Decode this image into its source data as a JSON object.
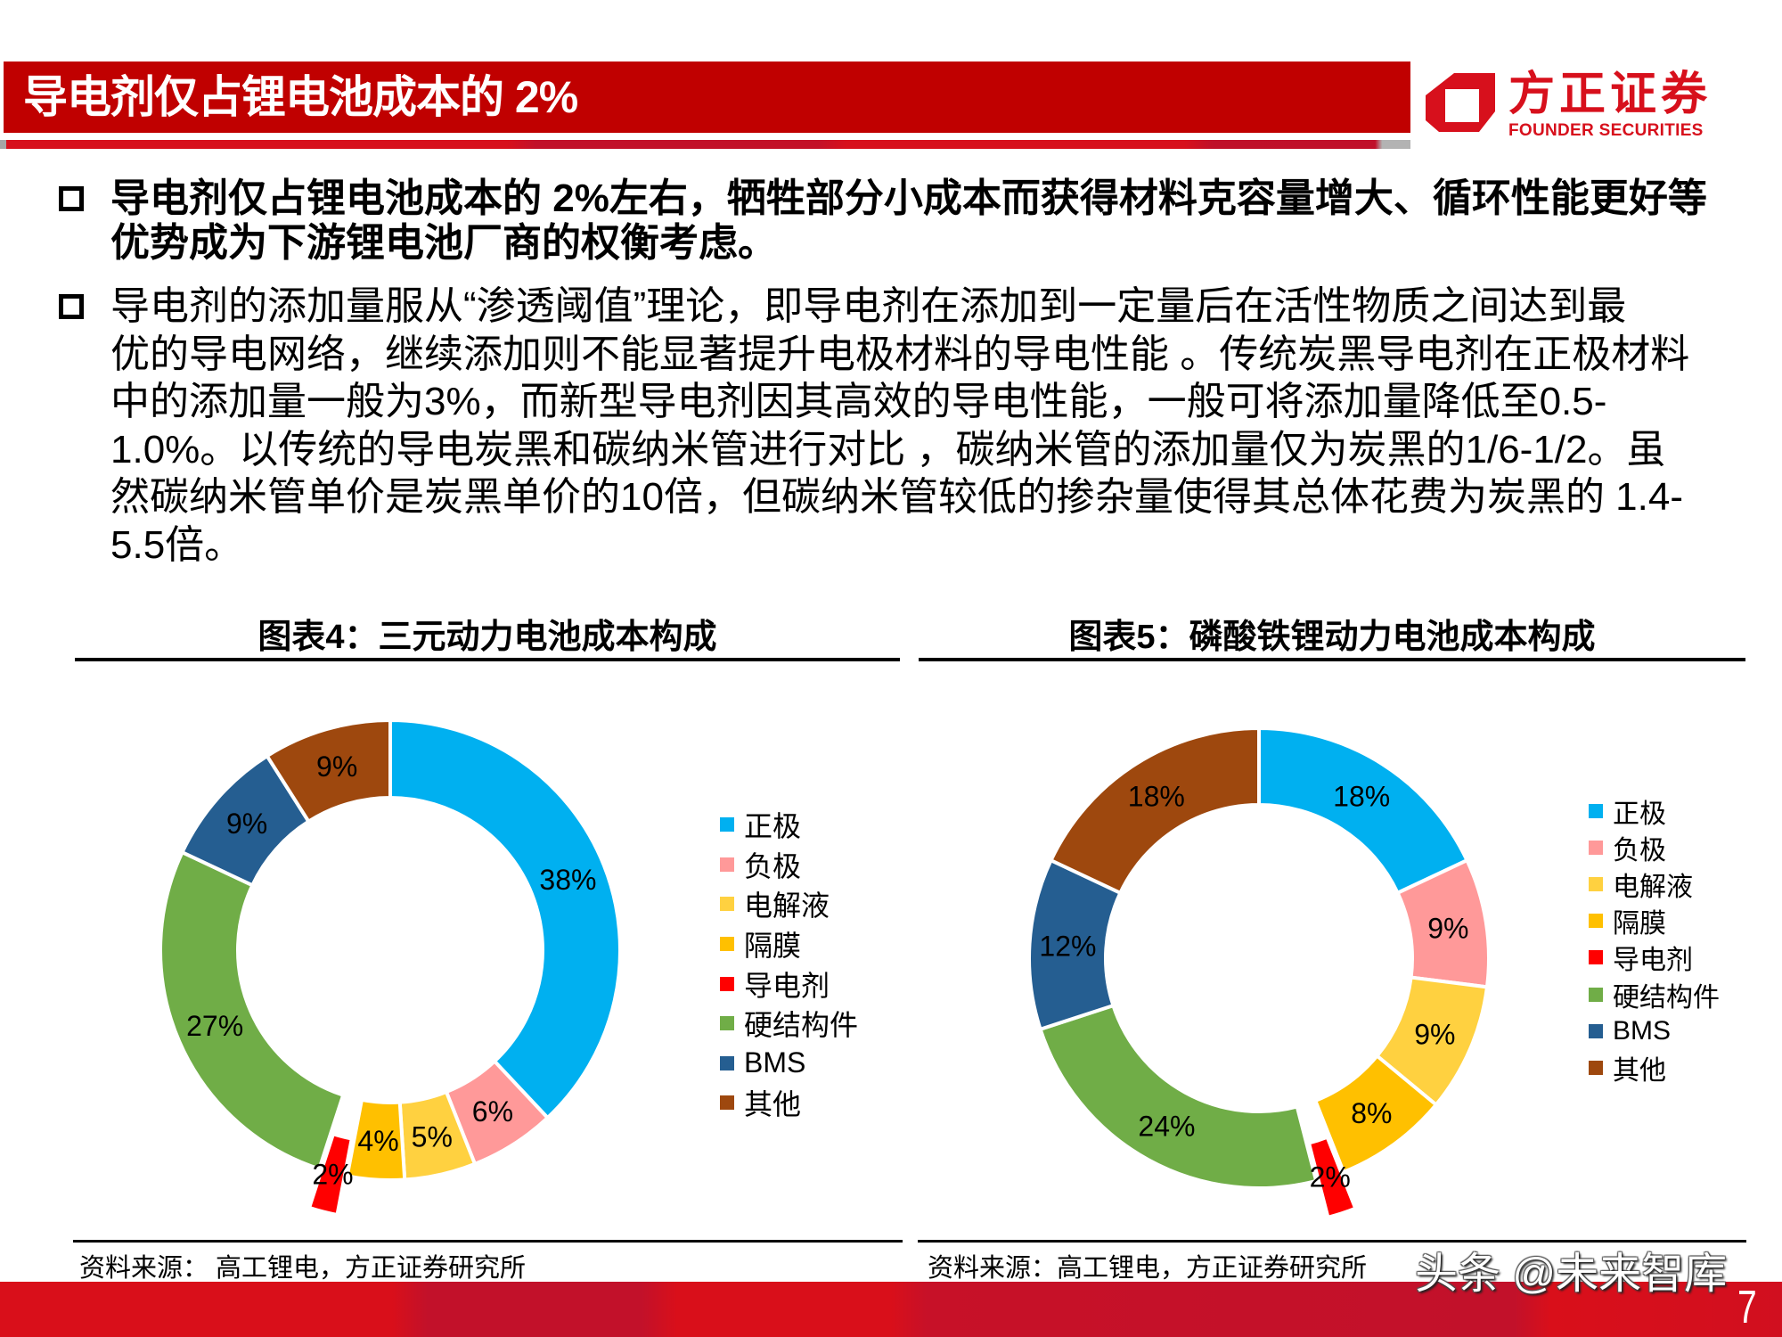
{
  "header": {
    "title": "导电剂仅占锂电池成本的 2%",
    "logo": {
      "cn_name": "方正证券",
      "en_name": "FOUNDER SECURITIES",
      "color": "#D7101C"
    }
  },
  "bullets": [
    {
      "style": "bold",
      "lines": [
        "导电剂仅占锂电池成本的 2%左右，牺牲部分小成本而获得材料克容量增大、循环性能更好等",
        "优势成为下游锂电池厂商的权衡考虑。"
      ]
    },
    {
      "style": "regular",
      "lines": [
        "导电剂的添加量服从“渗透阈值”理论，即导电剂在添加到一定量后在活性物质之间达到最",
        "优的导电网络，继续添加则不能显著提升电极材料的导电性能 。传统炭黑导电剂在正极材料",
        "中的添加量一般为3%，而新型导电剂因其高效的导电性能，一般可将添加量降低至0.5-",
        "1.0%。以传统的导电炭黑和碳纳米管进行对比 ，碳纳米管的添加量仅为炭黑的1/6-1/2。虽",
        "然碳纳米管单价是炭黑单价的10倍，但碳纳米管较低的掺杂量使得其总体花费为炭黑的 1.4-",
        "5.5倍。"
      ]
    }
  ],
  "chart_data": [
    {
      "type": "pie",
      "subtype": "donut",
      "title": "图表4：三元动力电池成本构成",
      "categories": [
        "正极",
        "负极",
        "电解液",
        "隔膜",
        "导电剂",
        "硬结构件",
        "BMS",
        "其他"
      ],
      "values": [
        38,
        6,
        5,
        4,
        2,
        27,
        9,
        9
      ],
      "labels": [
        "38%",
        "6%",
        "5%",
        "4%",
        "2%",
        "27%",
        "9%",
        "9%"
      ],
      "colors": [
        "#00B0F0",
        "#FF9999",
        "#FFD140",
        "#FFC000",
        "#FF0000",
        "#70AD47",
        "#255E91",
        "#9E480E"
      ],
      "exploded": [
        "导电剂"
      ],
      "unit": "%",
      "legend_position": "right",
      "source": "资料来源： 高工锂电，方正证券研究所"
    },
    {
      "type": "pie",
      "subtype": "donut",
      "title": "图表5：磷酸铁锂动力电池成本构成",
      "categories": [
        "正极",
        "负极",
        "电解液",
        "隔膜",
        "导电剂",
        "硬结构件",
        "BMS",
        "其他"
      ],
      "values": [
        18,
        9,
        9,
        8,
        2,
        24,
        12,
        18
      ],
      "labels": [
        "18%",
        "9%",
        "9%",
        "8%",
        "2%",
        "24%",
        "12%",
        "18%"
      ],
      "colors": [
        "#00B0F0",
        "#FF9999",
        "#FFD140",
        "#FFC000",
        "#FF0000",
        "#70AD47",
        "#255E91",
        "#9E480E"
      ],
      "exploded": [
        "导电剂"
      ],
      "unit": "%",
      "legend_position": "right",
      "source": "资料来源：高工锂电，方正证券研究所"
    }
  ],
  "footer": {
    "watermark": "头条 @未来智库",
    "page_number": "7"
  },
  "colors": {
    "title_bar": "#C00000",
    "footer_band": "#D90F1A",
    "slice_separator": "#FFFFFF"
  }
}
